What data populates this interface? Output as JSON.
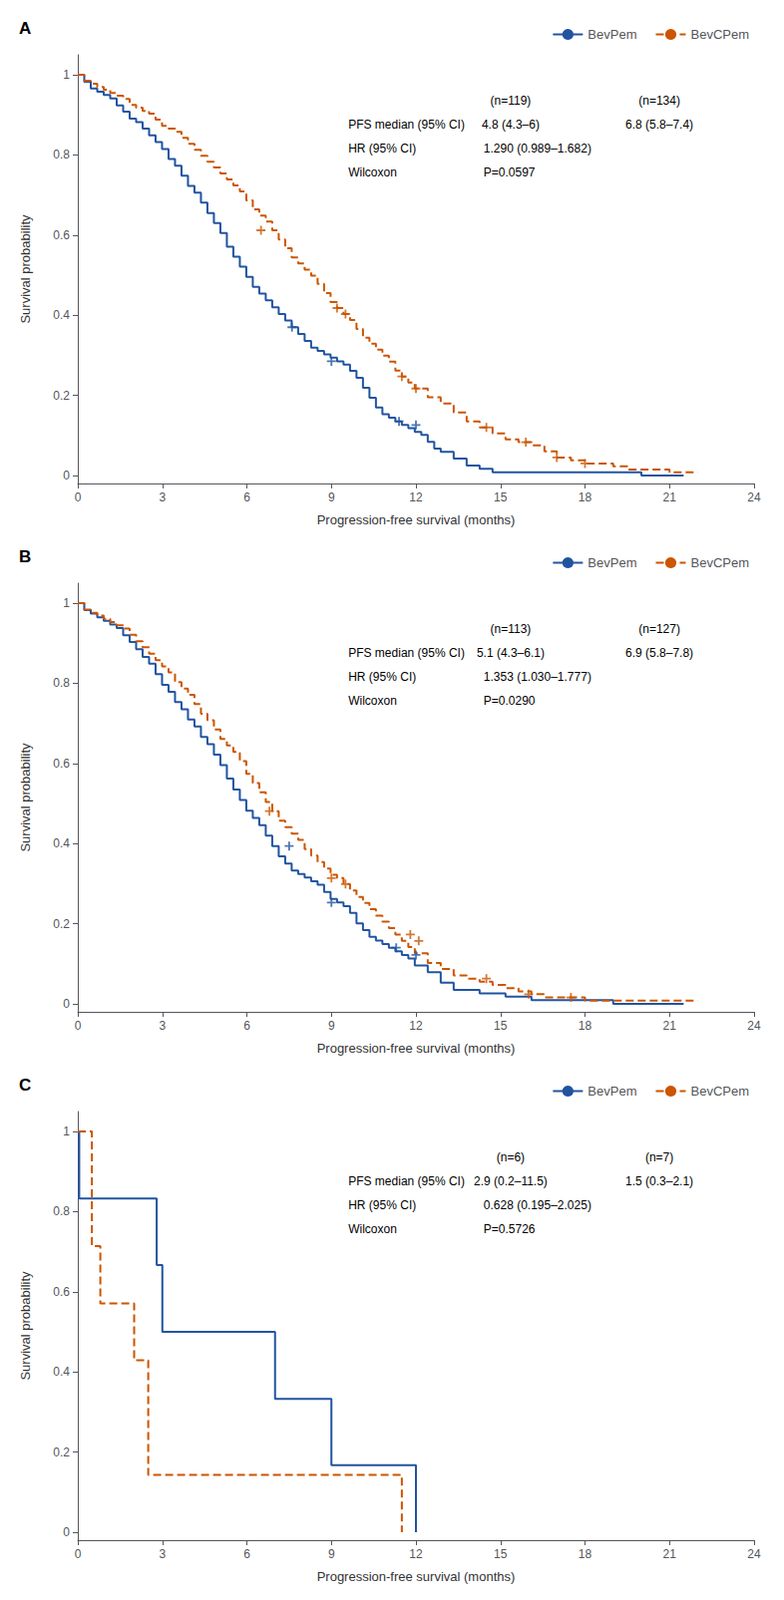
{
  "chart_data": [
    {
      "type": "step",
      "title": "A",
      "xlabel": "Progression-free survival (months)",
      "ylabel": "Survival probability",
      "xlim": [
        0,
        24
      ],
      "ylim": [
        -0.02,
        1.05
      ],
      "xticks": [
        0,
        3,
        6,
        9,
        12,
        15,
        18,
        21,
        24
      ],
      "yticks": [
        0,
        0.2,
        0.4,
        0.6,
        0.8,
        1
      ],
      "grid": false,
      "legend": "upper right",
      "series": [
        {
          "name": "BevPem",
          "color": "#2154a0",
          "line_style": "solid",
          "marker": "plus",
          "x": [
            0.0,
            0.23,
            0.46,
            0.69,
            0.92,
            1.15,
            1.38,
            1.61,
            1.84,
            2.07,
            2.3,
            2.53,
            2.76,
            2.99,
            3.22,
            3.45,
            3.68,
            3.91,
            4.14,
            4.37,
            4.6,
            4.83,
            5.06,
            5.29,
            5.52,
            5.75,
            5.98,
            6.21,
            6.44,
            6.67,
            6.9,
            7.13,
            7.36,
            7.59,
            7.82,
            8.05,
            8.28,
            8.51,
            8.74,
            8.97,
            9.2,
            9.43,
            9.66,
            9.89,
            10.12,
            10.35,
            10.58,
            10.81,
            11.04,
            11.27,
            11.5,
            11.73,
            11.96,
            12.19,
            12.42,
            12.65,
            12.88,
            13.34,
            13.8,
            14.26,
            14.72,
            15.18,
            15.64,
            16.1,
            17.0,
            18.0,
            19.0,
            20.0,
            21.0,
            21.5
          ],
          "values": [
            1.0,
            0.983,
            0.966,
            0.958,
            0.95,
            0.941,
            0.924,
            0.908,
            0.891,
            0.882,
            0.866,
            0.849,
            0.832,
            0.815,
            0.79,
            0.773,
            0.748,
            0.723,
            0.706,
            0.681,
            0.655,
            0.63,
            0.605,
            0.571,
            0.546,
            0.521,
            0.496,
            0.471,
            0.454,
            0.437,
            0.42,
            0.403,
            0.387,
            0.37,
            0.353,
            0.336,
            0.319,
            0.311,
            0.302,
            0.294,
            0.285,
            0.277,
            0.261,
            0.244,
            0.219,
            0.194,
            0.17,
            0.153,
            0.144,
            0.135,
            0.126,
            0.118,
            0.109,
            0.101,
            0.084,
            0.067,
            0.059,
            0.042,
            0.025,
            0.017,
            0.008,
            0.008,
            0.008,
            0.008,
            0.008,
            0.008,
            0.008,
            0.0,
            0.0,
            0.0
          ],
          "censor_x": [
            7.6,
            9.0,
            11.4,
            12.0
          ],
          "censor_values": [
            0.37,
            0.285,
            0.135,
            0.126
          ]
        },
        {
          "name": "BevCPem",
          "color": "#cc5500",
          "line_style": "dashed",
          "marker": "plus",
          "x": [
            0.0,
            0.23,
            0.46,
            0.69,
            0.92,
            1.15,
            1.38,
            1.61,
            1.84,
            2.07,
            2.3,
            2.53,
            2.76,
            2.99,
            3.22,
            3.45,
            3.68,
            3.91,
            4.14,
            4.37,
            4.6,
            4.83,
            5.06,
            5.29,
            5.52,
            5.75,
            5.98,
            6.21,
            6.44,
            6.67,
            6.9,
            7.13,
            7.36,
            7.59,
            7.82,
            8.05,
            8.28,
            8.51,
            8.74,
            8.97,
            9.2,
            9.43,
            9.66,
            9.89,
            10.12,
            10.35,
            10.58,
            10.81,
            11.04,
            11.27,
            11.5,
            11.73,
            11.96,
            12.42,
            12.88,
            13.34,
            13.8,
            14.26,
            14.72,
            15.18,
            15.64,
            16.1,
            16.56,
            17.0,
            17.5,
            18.0,
            18.5,
            19.0,
            19.5,
            20.0,
            20.5,
            21.0,
            21.5,
            22.0
          ],
          "values": [
            1.0,
            0.985,
            0.978,
            0.97,
            0.963,
            0.955,
            0.948,
            0.94,
            0.925,
            0.918,
            0.91,
            0.903,
            0.888,
            0.873,
            0.866,
            0.858,
            0.843,
            0.828,
            0.813,
            0.798,
            0.783,
            0.769,
            0.754,
            0.739,
            0.724,
            0.709,
            0.687,
            0.664,
            0.649,
            0.634,
            0.612,
            0.589,
            0.567,
            0.544,
            0.529,
            0.514,
            0.499,
            0.478,
            0.455,
            0.433,
            0.418,
            0.403,
            0.388,
            0.366,
            0.344,
            0.329,
            0.314,
            0.299,
            0.284,
            0.262,
            0.247,
            0.232,
            0.217,
            0.195,
            0.18,
            0.157,
            0.135,
            0.12,
            0.105,
            0.09,
            0.083,
            0.075,
            0.06,
            0.045,
            0.038,
            0.03,
            0.03,
            0.023,
            0.015,
            0.015,
            0.015,
            0.008,
            0.008,
            0.008
          ],
          "censor_x": [
            6.5,
            9.2,
            9.5,
            11.5,
            12.0,
            14.5,
            15.9,
            17.0,
            18.0
          ],
          "censor_values": [
            0.612,
            0.418,
            0.403,
            0.247,
            0.217,
            0.12,
            0.083,
            0.045,
            0.03
          ]
        }
      ],
      "annotations": [
        [
          null,
          "(n=119)",
          "(n=134)"
        ],
        [
          "PFS median (95% CI)",
          "4.8 (4.3–6)",
          "6.8 (5.8–7.4)"
        ],
        [
          "HR (95% CI)",
          "1.290 (0.989–1.682)"
        ],
        [
          "Wilcoxon",
          "P=0.0597"
        ]
      ]
    },
    {
      "type": "step",
      "title": "B",
      "xlabel": "Progression-free survival (months)",
      "ylabel": "Survival probability",
      "xlim": [
        0,
        24
      ],
      "ylim": [
        -0.02,
        1.05
      ],
      "xticks": [
        0,
        3,
        6,
        9,
        12,
        15,
        18,
        21,
        24
      ],
      "yticks": [
        0,
        0.2,
        0.4,
        0.6,
        0.8,
        1
      ],
      "grid": false,
      "legend": "upper right",
      "series": [
        {
          "name": "BevPem",
          "color": "#2154a0",
          "line_style": "solid",
          "marker": "plus",
          "x": [
            0.0,
            0.23,
            0.46,
            0.69,
            0.92,
            1.15,
            1.38,
            1.61,
            1.84,
            2.07,
            2.3,
            2.53,
            2.76,
            2.99,
            3.22,
            3.45,
            3.68,
            3.91,
            4.14,
            4.37,
            4.6,
            4.83,
            5.06,
            5.29,
            5.52,
            5.75,
            5.98,
            6.21,
            6.44,
            6.67,
            6.9,
            7.13,
            7.36,
            7.59,
            7.82,
            8.05,
            8.28,
            8.51,
            8.74,
            8.97,
            9.2,
            9.43,
            9.66,
            9.89,
            10.12,
            10.35,
            10.58,
            10.81,
            11.04,
            11.27,
            11.5,
            11.73,
            11.96,
            12.42,
            12.88,
            13.34,
            14.26,
            15.18,
            16.1,
            17.0,
            18.0,
            19.0,
            20.0,
            21.0,
            21.5
          ],
          "values": [
            1.0,
            0.983,
            0.974,
            0.965,
            0.956,
            0.947,
            0.938,
            0.92,
            0.903,
            0.885,
            0.866,
            0.849,
            0.823,
            0.796,
            0.779,
            0.753,
            0.735,
            0.71,
            0.692,
            0.666,
            0.648,
            0.622,
            0.596,
            0.562,
            0.535,
            0.509,
            0.482,
            0.464,
            0.446,
            0.42,
            0.394,
            0.368,
            0.35,
            0.333,
            0.324,
            0.315,
            0.306,
            0.297,
            0.279,
            0.262,
            0.253,
            0.244,
            0.227,
            0.201,
            0.184,
            0.167,
            0.158,
            0.149,
            0.14,
            0.131,
            0.122,
            0.113,
            0.096,
            0.079,
            0.053,
            0.035,
            0.026,
            0.018,
            0.009,
            0.009,
            0.009,
            0.0,
            0.0,
            0.0,
            0.0
          ],
          "censor_x": [
            7.5,
            9.0,
            11.3,
            12.0
          ],
          "censor_values": [
            0.394,
            0.253,
            0.14,
            0.122
          ]
        },
        {
          "name": "BevCPem",
          "color": "#cc5500",
          "line_style": "dashed",
          "marker": "plus",
          "x": [
            0.0,
            0.23,
            0.46,
            0.69,
            0.92,
            1.15,
            1.38,
            1.61,
            1.84,
            2.07,
            2.3,
            2.53,
            2.76,
            2.99,
            3.22,
            3.45,
            3.68,
            3.91,
            4.14,
            4.37,
            4.6,
            4.83,
            5.06,
            5.29,
            5.52,
            5.75,
            5.98,
            6.21,
            6.44,
            6.67,
            6.9,
            7.13,
            7.36,
            7.59,
            7.82,
            8.05,
            8.28,
            8.51,
            8.74,
            8.97,
            9.2,
            9.43,
            9.66,
            9.89,
            10.12,
            10.35,
            10.58,
            10.81,
            11.04,
            11.27,
            11.5,
            11.73,
            11.96,
            12.42,
            12.88,
            13.34,
            13.8,
            14.26,
            14.72,
            15.18,
            15.64,
            16.1,
            16.56,
            17.0,
            17.5,
            18.0,
            18.5,
            19.0,
            20.0,
            21.0,
            21.5,
            22.0
          ],
          "values": [
            1.0,
            0.984,
            0.976,
            0.969,
            0.961,
            0.953,
            0.945,
            0.937,
            0.921,
            0.905,
            0.89,
            0.874,
            0.858,
            0.842,
            0.827,
            0.803,
            0.787,
            0.771,
            0.748,
            0.724,
            0.708,
            0.685,
            0.661,
            0.645,
            0.629,
            0.606,
            0.574,
            0.551,
            0.528,
            0.504,
            0.481,
            0.457,
            0.441,
            0.425,
            0.409,
            0.386,
            0.37,
            0.354,
            0.338,
            0.322,
            0.314,
            0.299,
            0.283,
            0.267,
            0.252,
            0.236,
            0.22,
            0.205,
            0.189,
            0.173,
            0.157,
            0.142,
            0.126,
            0.102,
            0.087,
            0.071,
            0.063,
            0.055,
            0.047,
            0.039,
            0.031,
            0.024,
            0.016,
            0.016,
            0.016,
            0.008,
            0.008,
            0.008,
            0.008,
            0.008,
            0.008,
            0.008
          ],
          "censor_x": [
            6.8,
            9.0,
            9.5,
            11.8,
            12.1,
            14.5,
            16.0,
            17.5
          ],
          "censor_values": [
            0.481,
            0.314,
            0.299,
            0.173,
            0.157,
            0.063,
            0.024,
            0.016
          ]
        }
      ],
      "annotations": [
        [
          null,
          "(n=113)",
          "(n=127)"
        ],
        [
          "PFS median (95% CI)",
          "5.1 (4.3–6.1)",
          "6.9 (5.8–7.8)"
        ],
        [
          "HR (95% CI)",
          "1.353 (1.030–1.777)"
        ],
        [
          "Wilcoxon",
          "P=0.0290"
        ]
      ]
    },
    {
      "type": "step",
      "title": "C",
      "xlabel": "Progression-free survival (months)",
      "ylabel": "Survival probability",
      "xlim": [
        0,
        24
      ],
      "ylim": [
        -0.02,
        1.05
      ],
      "xticks": [
        0,
        3,
        6,
        9,
        12,
        15,
        18,
        21,
        24
      ],
      "yticks": [
        0,
        0.2,
        0.4,
        0.6,
        0.8,
        1
      ],
      "grid": false,
      "legend": "upper right",
      "series": [
        {
          "name": "BevPem",
          "color": "#2154a0",
          "line_style": "solid",
          "marker": "plus",
          "x": [
            0.0,
            0.05,
            0.5,
            1.0,
            2.0,
            2.8,
            3.0,
            4.5,
            5.0,
            6.0,
            7.0,
            8.0,
            9.0,
            10.0,
            11.0,
            11.7,
            12.0
          ],
          "values": [
            1.0,
            0.833,
            0.833,
            0.833,
            0.833,
            0.667,
            0.5,
            0.5,
            0.5,
            0.5,
            0.333,
            0.333,
            0.167,
            0.167,
            0.167,
            0.167,
            0.0
          ],
          "censor_x": [],
          "censor_values": []
        },
        {
          "name": "BevCPem",
          "color": "#cc5500",
          "line_style": "dashed",
          "marker": "plus",
          "x": [
            0.0,
            0.3,
            0.5,
            0.8,
            1.5,
            2.0,
            2.5,
            5.0,
            6.0,
            7.0,
            8.0,
            9.0,
            10.0,
            11.0,
            11.5
          ],
          "values": [
            1.0,
            1.0,
            0.714,
            0.571,
            0.571,
            0.429,
            0.143,
            0.143,
            0.143,
            0.143,
            0.143,
            0.143,
            0.143,
            0.143,
            0.0
          ],
          "censor_x": [],
          "censor_values": []
        }
      ],
      "annotations": [
        [
          null,
          "(n=6)",
          "(n=7)"
        ],
        [
          "PFS median (95% CI)",
          "2.9 (0.2–11.5)",
          "1.5 (0.3–2.1)"
        ],
        [
          "HR (95% CI)",
          "0.628 (0.195–2.025)"
        ],
        [
          "Wilcoxon",
          "P=0.5726"
        ]
      ]
    }
  ]
}
